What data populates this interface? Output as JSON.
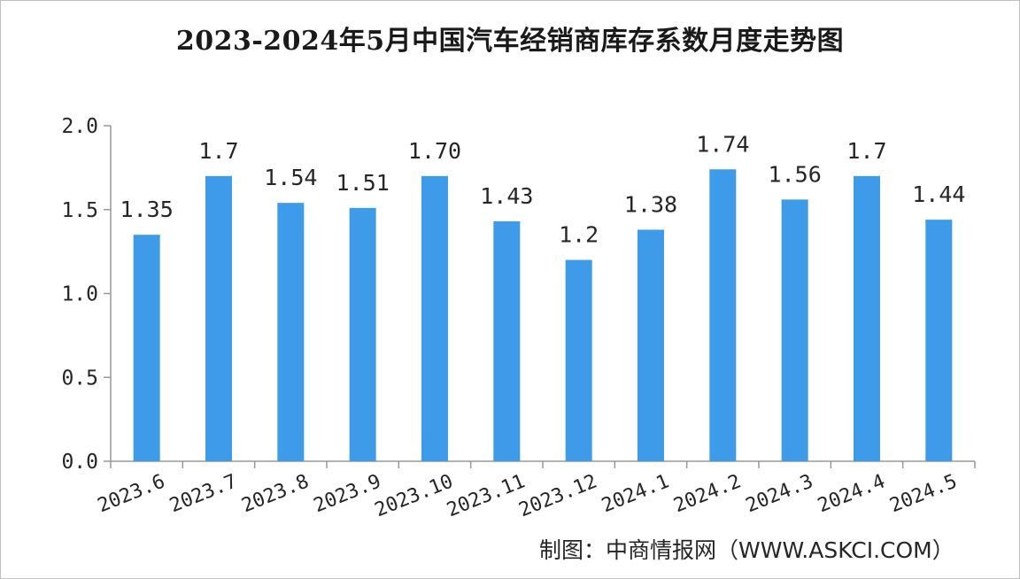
{
  "chart_data": {
    "type": "bar",
    "title": "2023-2024年5月中国汽车经销商库存系数月度走势图",
    "xlabel": "",
    "ylabel": "",
    "categories": [
      "2023.6",
      "2023.7",
      "2023.8",
      "2023.9",
      "2023.10",
      "2023.11",
      "2023.12",
      "2024.1",
      "2024.2",
      "2024.3",
      "2024.4",
      "2024.5"
    ],
    "values": [
      1.35,
      1.7,
      1.54,
      1.51,
      1.7,
      1.43,
      1.2,
      1.38,
      1.74,
      1.56,
      1.7,
      1.44
    ],
    "data_labels": [
      "1.35",
      "1.7",
      "1.54",
      "1.51",
      "1.70",
      "1.43",
      "1.2",
      "1.38",
      "1.74",
      "1.56",
      "1.7",
      "1.44"
    ],
    "ylim": [
      0,
      2.0
    ],
    "yticks": [
      "0.0",
      "0.5",
      "1.0",
      "1.5",
      "2.0"
    ],
    "bar_color": "#3d9be9",
    "axis_color": "#999999",
    "grid": false,
    "legend": "none"
  },
  "source": "制图：中商情报网（WWW.ASKCI.COM）"
}
